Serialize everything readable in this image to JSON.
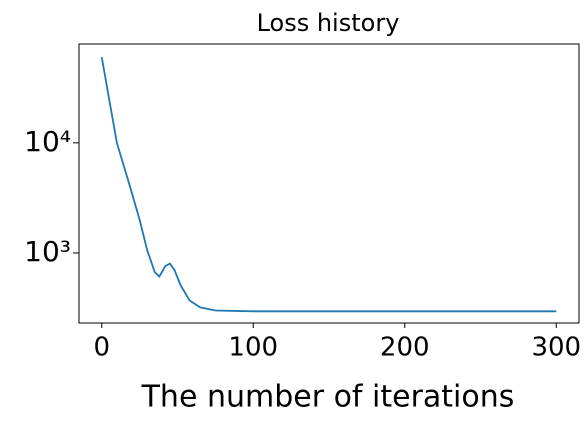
{
  "chart_data": {
    "type": "line",
    "title": "Loss history",
    "x_label": "The number of iterations",
    "x": [
      0,
      10,
      18,
      25,
      30,
      35,
      38,
      42,
      45,
      48,
      52,
      58,
      65,
      75,
      100,
      150,
      200,
      250,
      300
    ],
    "series": [
      {
        "name": "loss",
        "color": "#1f77b4",
        "values": [
          60000,
          10000,
          4300,
          2000,
          1060,
          670,
          610,
          760,
          800,
          700,
          510,
          370,
          320,
          300,
          295,
          295,
          295,
          295,
          295
        ]
      }
    ],
    "xlim": [
      -15,
      315
    ],
    "xticks": [
      0,
      100,
      200,
      300
    ],
    "ylim": [
      231,
      79000
    ],
    "yscale": "log",
    "yticks": [
      {
        "value": 1000,
        "label": "10³"
      },
      {
        "value": 10000,
        "label": "10⁴"
      }
    ]
  }
}
